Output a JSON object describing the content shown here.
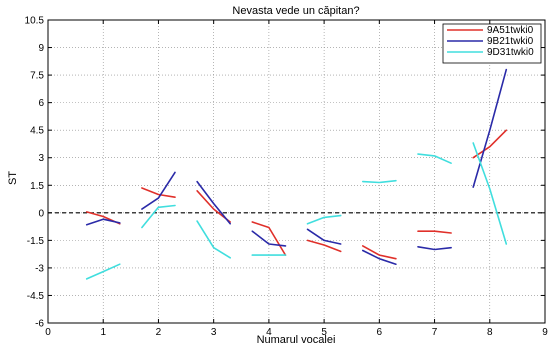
{
  "chart_data": {
    "type": "line",
    "title": "Nevasta vede un căpitan?",
    "xlabel": "Numarul vocalei",
    "ylabel": "ST",
    "xlim": [
      0,
      9
    ],
    "ylim": [
      -6,
      10.5
    ],
    "xticks": [
      "0",
      "1",
      "2",
      "3",
      "4",
      "5",
      "6",
      "7",
      "8",
      "9"
    ],
    "yticks": [
      "-6",
      "-4.5",
      "-3",
      "-1.5",
      "0",
      "1.5",
      "3",
      "4.5",
      "6",
      "7.5",
      "9",
      "10.5"
    ],
    "grid": true,
    "zero_line": true,
    "legend_position": "top-right",
    "series": [
      {
        "name": "9A51twki0",
        "color": "#e0302a",
        "segments": [
          [
            [
              0.7,
              0.05
            ],
            [
              1.0,
              -0.2
            ],
            [
              1.3,
              -0.6
            ]
          ],
          [
            [
              1.7,
              1.35
            ],
            [
              2.0,
              1.0
            ],
            [
              2.3,
              0.85
            ]
          ],
          [
            [
              2.7,
              1.2
            ],
            [
              3.0,
              0.2
            ],
            [
              3.3,
              -0.5
            ]
          ],
          [
            [
              3.7,
              -0.5
            ],
            [
              4.0,
              -0.8
            ],
            [
              4.3,
              -2.3
            ]
          ],
          [
            [
              4.7,
              -1.5
            ],
            [
              5.0,
              -1.75
            ],
            [
              5.3,
              -2.1
            ]
          ],
          [
            [
              5.7,
              -1.8
            ],
            [
              6.0,
              -2.3
            ],
            [
              6.3,
              -2.5
            ]
          ],
          [
            [
              6.7,
              -1.0
            ],
            [
              7.0,
              -1.0
            ],
            [
              7.3,
              -1.1
            ]
          ],
          [
            [
              7.7,
              3.0
            ],
            [
              8.0,
              3.6
            ],
            [
              8.3,
              4.5
            ]
          ]
        ]
      },
      {
        "name": "9B21twki0",
        "color": "#2a2aa8",
        "segments": [
          [
            [
              0.7,
              -0.65
            ],
            [
              1.0,
              -0.35
            ],
            [
              1.3,
              -0.55
            ]
          ],
          [
            [
              1.7,
              0.2
            ],
            [
              2.0,
              0.8
            ],
            [
              2.3,
              2.2
            ]
          ],
          [
            [
              2.7,
              1.7
            ],
            [
              3.0,
              0.5
            ],
            [
              3.3,
              -0.6
            ]
          ],
          [
            [
              3.7,
              -1.0
            ],
            [
              4.0,
              -1.7
            ],
            [
              4.3,
              -1.8
            ]
          ],
          [
            [
              4.7,
              -0.9
            ],
            [
              5.0,
              -1.5
            ],
            [
              5.3,
              -1.7
            ]
          ],
          [
            [
              5.7,
              -2.05
            ],
            [
              6.0,
              -2.5
            ],
            [
              6.3,
              -2.8
            ]
          ],
          [
            [
              6.7,
              -1.85
            ],
            [
              7.0,
              -2.0
            ],
            [
              7.3,
              -1.9
            ]
          ],
          [
            [
              7.7,
              1.4
            ],
            [
              8.0,
              4.5
            ],
            [
              8.3,
              7.8
            ]
          ]
        ]
      },
      {
        "name": "9D31twki0",
        "color": "#40dede",
        "segments": [
          [
            [
              0.7,
              -3.6
            ],
            [
              1.0,
              -3.2
            ],
            [
              1.3,
              -2.8
            ]
          ],
          [
            [
              1.7,
              -0.8
            ],
            [
              2.0,
              0.3
            ],
            [
              2.3,
              0.4
            ]
          ],
          [
            [
              2.7,
              -0.45
            ],
            [
              3.0,
              -1.9
            ],
            [
              3.3,
              -2.45
            ]
          ],
          [
            [
              3.7,
              -2.3
            ],
            [
              4.0,
              -2.3
            ],
            [
              4.3,
              -2.3
            ]
          ],
          [
            [
              4.7,
              -0.6
            ],
            [
              5.0,
              -0.25
            ],
            [
              5.3,
              -0.15
            ]
          ],
          [
            [
              5.7,
              1.7
            ],
            [
              6.0,
              1.65
            ],
            [
              6.3,
              1.75
            ]
          ],
          [
            [
              6.7,
              3.2
            ],
            [
              7.0,
              3.1
            ],
            [
              7.3,
              2.7
            ]
          ],
          [
            [
              7.7,
              3.8
            ],
            [
              8.0,
              1.3
            ],
            [
              8.3,
              -1.7
            ]
          ]
        ]
      }
    ]
  }
}
